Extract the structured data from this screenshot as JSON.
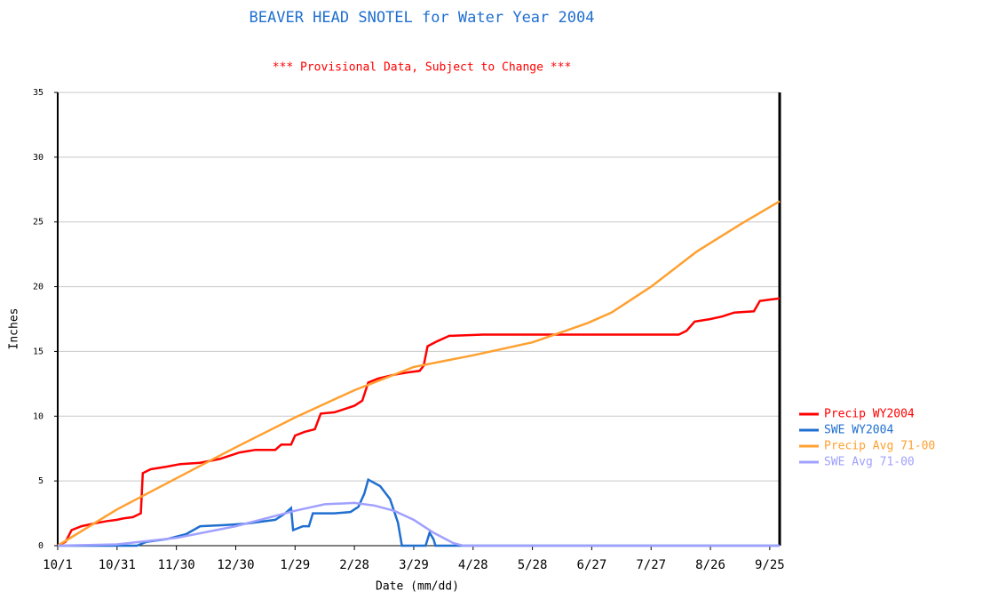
{
  "chart_data": {
    "type": "line",
    "title": "BEAVER HEAD SNOTEL for Water Year 2004",
    "subtitle": "*** Provisional Data, Subject to Change ***",
    "x_label": "Date (mm/dd)",
    "y_label": "Inches",
    "xlim": [
      0,
      365
    ],
    "xticks": [
      {
        "value": 0,
        "label": "10/1"
      },
      {
        "value": 30,
        "label": "10/31"
      },
      {
        "value": 60,
        "label": "11/30"
      },
      {
        "value": 90,
        "label": "12/30"
      },
      {
        "value": 120,
        "label": "1/29"
      },
      {
        "value": 150,
        "label": "2/28"
      },
      {
        "value": 180,
        "label": "3/29"
      },
      {
        "value": 210,
        "label": "4/28"
      },
      {
        "value": 240,
        "label": "5/28"
      },
      {
        "value": 270,
        "label": "6/27"
      },
      {
        "value": 300,
        "label": "7/27"
      },
      {
        "value": 330,
        "label": "8/26"
      },
      {
        "value": 360,
        "label": "9/25"
      }
    ],
    "ylim": [
      0,
      35
    ],
    "yticks": [
      0,
      5,
      10,
      15,
      20,
      25,
      30,
      35
    ],
    "grid": true,
    "legend": "right",
    "series": [
      {
        "name": "Precip WY2004",
        "color": "#ff0000",
        "x": [
          0,
          4,
          7,
          12,
          18,
          25,
          30,
          33,
          38,
          42,
          43,
          47,
          55,
          62,
          72,
          82,
          92,
          100,
          110,
          113,
          118,
          120,
          125,
          130,
          133,
          140,
          150,
          154,
          157,
          162,
          170,
          178,
          183,
          185,
          187,
          192,
          198,
          215,
          314,
          318,
          322,
          330,
          336,
          342,
          352,
          355,
          360,
          365
        ],
        "values": [
          0,
          0.3,
          1.2,
          1.5,
          1.7,
          1.9,
          2.0,
          2.1,
          2.2,
          2.5,
          5.6,
          5.9,
          6.1,
          6.3,
          6.4,
          6.7,
          7.2,
          7.4,
          7.4,
          7.8,
          7.8,
          8.5,
          8.8,
          9.0,
          10.2,
          10.3,
          10.8,
          11.2,
          12.6,
          12.9,
          13.2,
          13.4,
          13.5,
          13.9,
          15.4,
          15.8,
          16.2,
          16.3,
          16.3,
          16.6,
          17.3,
          17.5,
          17.7,
          18.0,
          18.1,
          18.9,
          19.0,
          19.1
        ]
      },
      {
        "name": "SWE WY2004",
        "color": "#1f6fd0",
        "x": [
          0,
          40,
          45,
          55,
          65,
          72,
          85,
          95,
          110,
          115,
          118,
          119,
          124,
          127,
          129,
          140,
          148,
          152,
          155,
          157,
          163,
          168,
          172,
          174,
          186,
          188,
          190,
          191,
          365
        ],
        "values": [
          0,
          0,
          0.3,
          0.5,
          0.9,
          1.5,
          1.6,
          1.7,
          2.0,
          2.5,
          2.9,
          1.2,
          1.5,
          1.5,
          2.5,
          2.5,
          2.6,
          3.0,
          4.0,
          5.1,
          4.6,
          3.6,
          1.8,
          0,
          0,
          1.0,
          0.5,
          0,
          0
        ]
      },
      {
        "name": "Precip Avg 71-00",
        "color": "#ffa030",
        "x": [
          0,
          30,
          60,
          90,
          120,
          150,
          180,
          210,
          240,
          255,
          268,
          280,
          300,
          323,
          345,
          365
        ],
        "values": [
          0,
          2.8,
          5.2,
          7.6,
          9.9,
          12.0,
          13.8,
          14.7,
          15.7,
          16.5,
          17.2,
          18.0,
          20.0,
          22.7,
          24.8,
          26.6
        ]
      },
      {
        "name": "SWE Avg 71-00",
        "color": "#a0a0ff",
        "x": [
          0,
          30,
          60,
          90,
          120,
          135,
          150,
          160,
          170,
          180,
          190,
          200,
          205,
          365
        ],
        "values": [
          0,
          0.1,
          0.6,
          1.5,
          2.7,
          3.2,
          3.3,
          3.1,
          2.7,
          2.0,
          1.0,
          0.2,
          0,
          0
        ]
      }
    ]
  }
}
